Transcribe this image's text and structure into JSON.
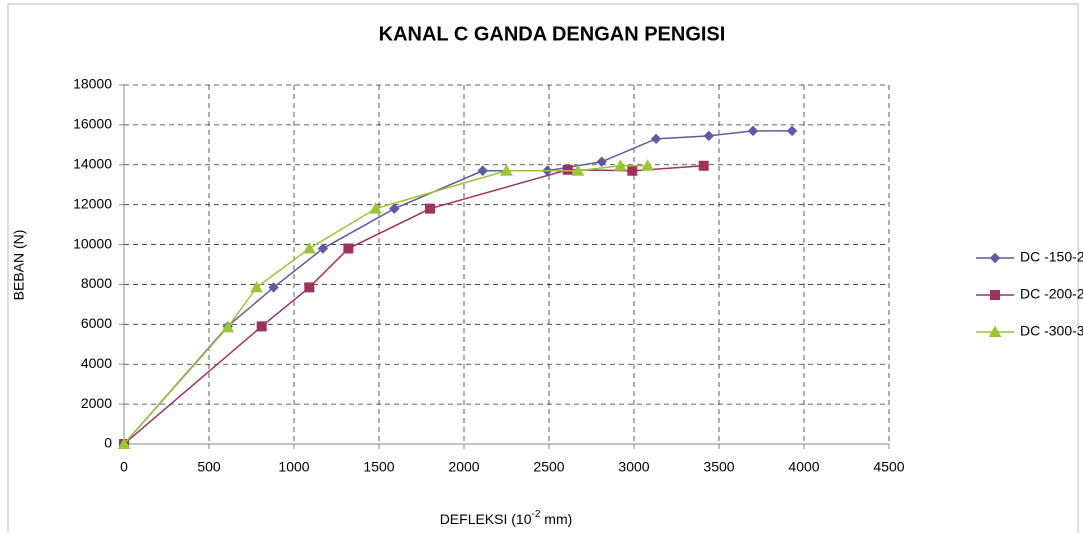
{
  "chart_data": {
    "type": "line",
    "title": "KANAL C GANDA DENGAN PENGISI",
    "y_label": "BEBAN (N)",
    "x_label": [
      "DEFLEKSI (10",
      "-2",
      " mm)"
    ],
    "xlim": [
      0,
      4500
    ],
    "xticks": [
      0,
      500,
      1000,
      1500,
      2000,
      2500,
      3000,
      3500,
      4000,
      4500
    ],
    "ylim": [
      0,
      18000
    ],
    "yticks": [
      0,
      2000,
      4000,
      6000,
      8000,
      10000,
      12000,
      14000,
      16000,
      18000
    ],
    "grid": true,
    "legend": "right",
    "series": [
      {
        "name": "DC -150-2",
        "color": "#5b5ba6",
        "marker": "diamond",
        "x": [
          0,
          610,
          880,
          1170,
          1590,
          2110,
          2490,
          2810,
          3130,
          3440,
          3700,
          3930
        ],
        "values": [
          0,
          5900,
          7850,
          9800,
          11800,
          13700,
          13700,
          14150,
          15300,
          15450,
          15700,
          15700
        ]
      },
      {
        "name": "DC -200-2",
        "color": "#a0305e",
        "marker": "square",
        "x": [
          0,
          810,
          1090,
          1320,
          1800,
          2610,
          2990,
          3410
        ],
        "values": [
          0,
          5900,
          7850,
          9800,
          11800,
          13750,
          13700,
          13950
        ]
      },
      {
        "name": "DC -300-3",
        "color": "#9bc634",
        "marker": "triangle",
        "x": [
          0,
          610,
          780,
          1090,
          1480,
          2250,
          2670,
          2920,
          3080
        ],
        "values": [
          0,
          5850,
          7850,
          9800,
          11800,
          13700,
          13700,
          13950,
          13950
        ]
      }
    ]
  }
}
